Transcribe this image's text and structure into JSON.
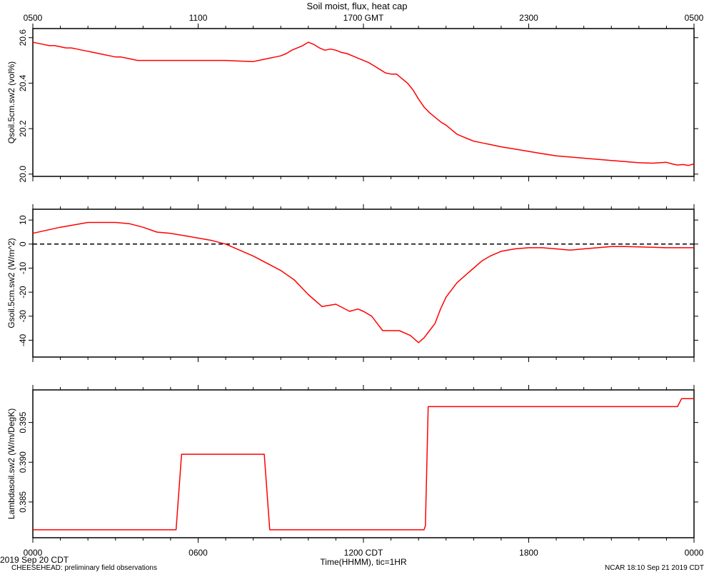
{
  "page": {
    "title": "Soil moist, flux, heat cap",
    "date_label": "2019 Sep 20 CDT",
    "footer_left": "CHEESEHEAD: preliminary field observations",
    "footer_right": "NCAR 18:10 Sep 21 2019 CDT",
    "xaxis_label": "Time(HHMM), tic=1HR"
  },
  "colors": {
    "series": "#ff0000",
    "axis": "#000000",
    "zero_line": "#000000"
  },
  "chart_data": [
    {
      "type": "line",
      "title": "Soil moist, flux, heat cap",
      "xlabel": "Time(HHMM), tic=1HR",
      "ylabel": "Qsoil.5cm.sw2 (vol%)",
      "xlim": [
        0,
        24
      ],
      "ylim": [
        19.99,
        20.64
      ],
      "yticks": [
        20.0,
        20.2,
        20.4,
        20.6
      ],
      "yticklabels": [
        "20.0",
        "20.2",
        "20.4",
        "20.6"
      ],
      "top_xticks": [
        0,
        6,
        12,
        18,
        24
      ],
      "top_xticklabels": [
        "0500",
        "1100",
        "1700 GMT",
        "2300",
        "0500"
      ],
      "grid": false,
      "series": [
        {
          "x": [
            0,
            0.2,
            0.4,
            0.6,
            0.8,
            1.0,
            1.2,
            1.4,
            1.6,
            1.8,
            2.0,
            2.2,
            2.4,
            2.6,
            2.8,
            3.0,
            3.2,
            3.4,
            3.6,
            3.8,
            4.0,
            4.5,
            5.0,
            5.5,
            6.0,
            6.5,
            7.0,
            7.5,
            8.0,
            8.2,
            8.4,
            8.6,
            8.8,
            9.0,
            9.2,
            9.4,
            9.6,
            9.8,
            10.0,
            10.2,
            10.4,
            10.6,
            10.8,
            11.0,
            11.2,
            11.4,
            11.6,
            11.8,
            12.0,
            12.2,
            12.4,
            12.6,
            12.8,
            13.0,
            13.2,
            13.4,
            13.6,
            13.8,
            14.0,
            14.2,
            14.4,
            14.6,
            14.8,
            15.0,
            15.2,
            15.4,
            15.6,
            15.8,
            16.0,
            16.2,
            16.4,
            16.6,
            16.8,
            17.0,
            17.5,
            18.0,
            18.5,
            19.0,
            19.5,
            20.0,
            20.5,
            21.0,
            21.5,
            22.0,
            22.5,
            23.0,
            23.2,
            23.4,
            23.6,
            23.8,
            24.0
          ],
          "y": [
            20.58,
            20.575,
            20.57,
            20.565,
            20.565,
            20.56,
            20.555,
            20.555,
            20.55,
            20.545,
            20.54,
            20.535,
            20.53,
            20.525,
            20.52,
            20.515,
            20.515,
            20.51,
            20.505,
            20.5,
            20.5,
            20.5,
            20.5,
            20.5,
            20.5,
            20.5,
            20.5,
            20.497,
            20.495,
            20.5,
            20.505,
            20.51,
            20.515,
            20.52,
            20.53,
            20.545,
            20.555,
            20.565,
            20.58,
            20.57,
            20.555,
            20.545,
            20.55,
            20.545,
            20.535,
            20.53,
            20.52,
            20.51,
            20.5,
            20.49,
            20.475,
            20.46,
            20.445,
            20.44,
            20.44,
            20.42,
            20.4,
            20.37,
            20.33,
            20.295,
            20.27,
            20.25,
            20.23,
            20.215,
            20.195,
            20.175,
            20.165,
            20.155,
            20.145,
            20.14,
            20.135,
            20.13,
            20.125,
            20.12,
            20.11,
            20.1,
            20.09,
            20.08,
            20.075,
            20.07,
            20.065,
            20.06,
            20.055,
            20.05,
            20.048,
            20.052,
            20.045,
            20.04,
            20.042,
            20.038,
            20.045
          ]
        }
      ]
    },
    {
      "type": "line",
      "ylabel": "Gsoil.5cm.sw2 (W/m^2)",
      "xlim": [
        0,
        24
      ],
      "ylim": [
        -47,
        14.5
      ],
      "yticks": [
        10,
        0,
        -10,
        -20,
        -30,
        -40
      ],
      "yticklabels": [
        "10",
        "0",
        "-10",
        "-20",
        "-30",
        "-40"
      ],
      "reference_line": 0,
      "grid": false,
      "series": [
        {
          "x": [
            0,
            1.0,
            2.0,
            2.5,
            3.0,
            3.5,
            4.0,
            4.5,
            5.0,
            5.5,
            6.0,
            6.5,
            7.0,
            7.5,
            8.0,
            8.5,
            9.0,
            9.5,
            10.0,
            10.5,
            11.0,
            11.5,
            11.8,
            12.0,
            12.3,
            12.5,
            12.7,
            13.0,
            13.3,
            13.7,
            14.0,
            14.2,
            14.4,
            14.6,
            14.8,
            15.0,
            15.2,
            15.4,
            15.6,
            15.8,
            16.0,
            16.3,
            16.6,
            17.0,
            17.5,
            18.0,
            18.5,
            19.0,
            19.5,
            20.0,
            20.5,
            21.0,
            21.5,
            22.0,
            22.5,
            23.0,
            23.5,
            24.0
          ],
          "y": [
            4.5,
            7,
            9,
            9,
            9,
            8.5,
            7,
            5,
            4.5,
            3.5,
            2.5,
            1.5,
            0,
            -2.5,
            -5,
            -8,
            -11,
            -15,
            -21,
            -26,
            -25,
            -28,
            -27,
            -28,
            -30,
            -33,
            -36,
            -36,
            -36,
            -38,
            -41,
            -39,
            -36,
            -33,
            -27,
            -22,
            -19,
            -16,
            -14,
            -12,
            -10,
            -7,
            -5,
            -3,
            -2,
            -1.5,
            -1.5,
            -2,
            -2.5,
            -2,
            -1.5,
            -1,
            -1,
            -1.2,
            -1.3,
            -1.5,
            -1.5,
            -1.5
          ]
        }
      ]
    },
    {
      "type": "line",
      "ylabel": "Lambdasoil.sw2 (W/m/DegK)",
      "xlim": [
        0,
        24
      ],
      "ylim": [
        0.3805,
        0.3991
      ],
      "yticks": [
        0.385,
        0.39,
        0.395
      ],
      "yticklabels": [
        "0.385",
        "0.390",
        "0.395"
      ],
      "xticks": [
        0,
        6,
        12,
        18,
        24
      ],
      "xticklabels": [
        "0000",
        "0600",
        "1200 CDT",
        "1800",
        "0000"
      ],
      "grid": false,
      "series": [
        {
          "x": [
            0,
            5.2,
            5.4,
            8.4,
            8.6,
            14.2,
            14.25,
            14.35,
            23.35,
            23.4,
            23.55,
            24.0
          ],
          "y": [
            0.3815,
            0.3815,
            0.391,
            0.391,
            0.3815,
            0.3815,
            0.382,
            0.397,
            0.397,
            0.397,
            0.398,
            0.398
          ]
        }
      ]
    }
  ]
}
